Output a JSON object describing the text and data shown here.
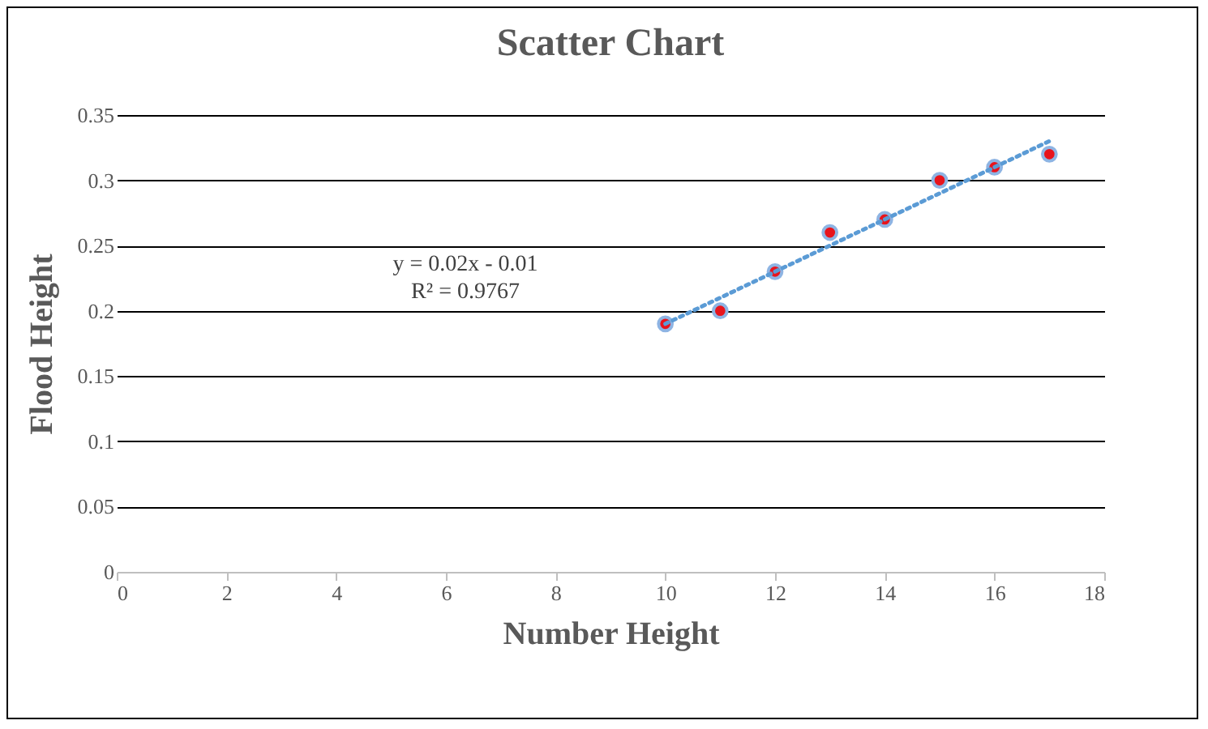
{
  "chart_data": {
    "type": "scatter",
    "title": "Scatter Chart",
    "xlabel": "Number Height",
    "ylabel": "Flood Height",
    "xlim": [
      0,
      18
    ],
    "xticks": [
      0,
      2,
      4,
      6,
      8,
      10,
      12,
      14,
      16,
      18
    ],
    "ylim": [
      0,
      0.35
    ],
    "yticks": [
      0,
      0.05,
      0.1,
      0.15,
      0.2,
      0.25,
      0.3,
      0.35
    ],
    "grid": "y",
    "marker": "circle",
    "annotations": [
      "y = 0.02x - 0.01",
      "R² = 0.9767"
    ],
    "series": [
      {
        "color": "#e8141c",
        "x": [
          10,
          11,
          12,
          13,
          14,
          15,
          16,
          17
        ],
        "values": [
          0.19,
          0.2,
          0.23,
          0.26,
          0.27,
          0.3,
          0.31,
          0.32
        ]
      },
      {
        "type": "line",
        "marker": "none",
        "color": "#5b9bd5",
        "line_style": "dotted",
        "x": [
          10,
          17
        ],
        "values": [
          0.19,
          0.33
        ]
      }
    ]
  }
}
